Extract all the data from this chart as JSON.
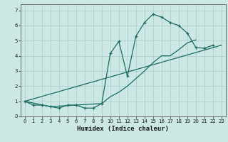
{
  "xlabel": "Humidex (Indice chaleur)",
  "bg_color": "#cce8e5",
  "grid_color": "#aed0cc",
  "line_color": "#1a6b60",
  "xlim": [
    -0.5,
    23.5
  ],
  "ylim": [
    0,
    7.4
  ],
  "yticks": [
    0,
    1,
    2,
    3,
    4,
    5,
    6,
    7
  ],
  "xticks": [
    0,
    1,
    2,
    3,
    4,
    5,
    6,
    7,
    8,
    9,
    10,
    11,
    12,
    13,
    14,
    15,
    16,
    17,
    18,
    19,
    20,
    21,
    22,
    23
  ],
  "series": [
    {
      "x": [
        0,
        1,
        2,
        3,
        4,
        5,
        6,
        7,
        8,
        9,
        10,
        11,
        12,
        13,
        14,
        15,
        16,
        17,
        18,
        19,
        20,
        21,
        22
      ],
      "y": [
        1.0,
        0.75,
        0.75,
        0.65,
        0.55,
        0.75,
        0.75,
        0.55,
        0.55,
        0.85,
        4.15,
        4.95,
        2.65,
        5.3,
        6.2,
        6.75,
        6.55,
        6.2,
        6.0,
        5.5,
        4.55,
        4.5,
        4.7
      ],
      "marker": true,
      "linewidth": 0.9
    },
    {
      "x": [
        0,
        3,
        9,
        10,
        11,
        12,
        13,
        14,
        15,
        16,
        17,
        18,
        19,
        20
      ],
      "y": [
        1.0,
        0.65,
        0.85,
        1.3,
        1.6,
        2.0,
        2.5,
        3.0,
        3.55,
        4.0,
        4.0,
        4.4,
        4.85,
        5.05
      ],
      "marker": false,
      "linewidth": 0.9
    },
    {
      "x": [
        0,
        23
      ],
      "y": [
        1.0,
        4.7
      ],
      "marker": false,
      "linewidth": 0.9
    }
  ]
}
